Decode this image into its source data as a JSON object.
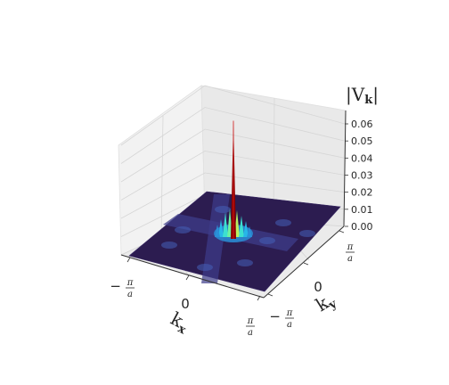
{
  "chart_data": {
    "type": "surface3d",
    "title": "",
    "zlabel": {
      "main": "|V",
      "sub": "k",
      "end": "|"
    },
    "xlabel": {
      "main": "k",
      "sub": "x"
    },
    "ylabel": {
      "main": "k",
      "sub": "y"
    },
    "zlim": [
      0,
      0.06
    ],
    "zticks": [
      "0.00",
      "0.01",
      "0.02",
      "0.03",
      "0.04",
      "0.05",
      "0.06"
    ],
    "xticks": [
      {
        "sign": "−",
        "num": "π",
        "den": "a"
      },
      {
        "sign": "",
        "num": "0",
        "den": ""
      },
      {
        "sign": "",
        "num": "π",
        "den": "a"
      }
    ],
    "yticks": [
      {
        "sign": "−",
        "num": "π",
        "den": "a"
      },
      {
        "sign": "",
        "num": "0",
        "den": ""
      },
      {
        "sign": "",
        "num": "π",
        "den": "a"
      }
    ],
    "peak": {
      "kx": 0,
      "ky": 0,
      "value": 0.06
    },
    "colormap": "jet",
    "base_color": "#2c1c50"
  }
}
